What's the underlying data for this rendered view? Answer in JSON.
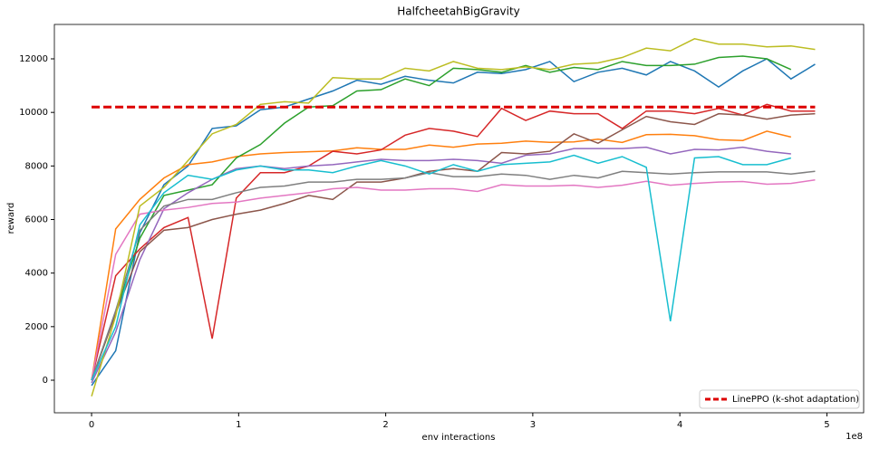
{
  "chart_data": {
    "type": "line",
    "title": "HalfcheetahBigGravity",
    "x_label": "env interactions",
    "y_label": "reward",
    "x_offset_label": "1e8",
    "x": [
      0,
      16400000,
      32800000,
      49200000,
      65600000,
      82000000,
      98400000,
      114800000,
      131200000,
      147600000,
      164000000,
      180400000,
      196800000,
      213200000,
      229600000,
      246000000,
      262400000,
      278800000,
      295200000,
      311600000,
      328000000,
      344400000,
      360800000,
      377200000,
      393600000,
      410000000,
      426400000,
      442800000,
      459200000,
      475600000,
      492000000
    ],
    "series": [
      {
        "color": "#1f77b4",
        "values": [
          -200,
          1100,
          5500,
          7300,
          8000,
          9400,
          9500,
          10100,
          10200,
          10500,
          10800,
          11200,
          11050,
          11350,
          11200,
          11100,
          11500,
          11450,
          11600,
          11900,
          11150,
          11500,
          11650,
          11400,
          11900,
          11550,
          10950,
          11550,
          12000,
          11250,
          11800
        ]
      },
      {
        "color": "#ff7f0e",
        "values": [
          0,
          5650,
          6750,
          7550,
          8050,
          8150,
          8350,
          8450,
          8500,
          8530,
          8560,
          8680,
          8620,
          8620,
          8780,
          8700,
          8820,
          8850,
          8930,
          8880,
          8900,
          9000,
          8880,
          9170,
          9180,
          9130,
          8980,
          8950,
          9300,
          9080,
          null
        ]
      },
      {
        "color": "#2ca02c",
        "values": [
          0,
          2500,
          5300,
          6900,
          7100,
          7300,
          8300,
          8800,
          9600,
          10200,
          10250,
          10800,
          10850,
          11250,
          11000,
          11650,
          11600,
          11500,
          11750,
          11500,
          11680,
          11600,
          11900,
          11750,
          11750,
          11800,
          12050,
          12100,
          12000,
          11600,
          null
        ]
      },
      {
        "color": "#d62728",
        "values": [
          0,
          3900,
          4900,
          5700,
          6075,
          1550,
          6800,
          7750,
          7750,
          8000,
          8550,
          8450,
          8600,
          9150,
          9400,
          9300,
          9100,
          10150,
          9700,
          10050,
          9950,
          9950,
          9400,
          10050,
          10050,
          9950,
          10150,
          9900,
          10300,
          10050,
          10050
        ]
      },
      {
        "color": "#9467bd",
        "values": [
          -100,
          1800,
          4500,
          6400,
          7000,
          7500,
          7900,
          8000,
          7900,
          8000,
          8050,
          8150,
          8250,
          8200,
          8200,
          8250,
          8200,
          8100,
          8400,
          8450,
          8650,
          8650,
          8650,
          8700,
          8450,
          8620,
          8600,
          8700,
          8550,
          8450,
          null
        ]
      },
      {
        "color": "#8c564b",
        "values": [
          0,
          2500,
          4800,
          5600,
          5700,
          6000,
          6200,
          6350,
          6600,
          6900,
          6750,
          7400,
          7400,
          7550,
          7800,
          7900,
          7800,
          8500,
          8450,
          8550,
          9200,
          8850,
          9350,
          9850,
          9650,
          9550,
          9950,
          9900,
          9750,
          9900,
          9950
        ]
      },
      {
        "color": "#e377c2",
        "values": [
          0,
          4700,
          6200,
          6350,
          6450,
          6600,
          6650,
          6800,
          6900,
          7000,
          7150,
          7200,
          7100,
          7100,
          7150,
          7150,
          7050,
          7300,
          7250,
          7250,
          7280,
          7200,
          7280,
          7430,
          7280,
          7350,
          7400,
          7420,
          7320,
          7350,
          7480
        ]
      },
      {
        "color": "#7f7f7f",
        "values": [
          0,
          2600,
          5600,
          6500,
          6750,
          6750,
          7000,
          7200,
          7250,
          7400,
          7400,
          7500,
          7500,
          7550,
          7750,
          7600,
          7600,
          7700,
          7650,
          7500,
          7650,
          7550,
          7800,
          7750,
          7700,
          7750,
          7780,
          7780,
          7780,
          7700,
          7800
        ]
      },
      {
        "color": "#bcbd22",
        "values": [
          -600,
          2400,
          6500,
          7200,
          8200,
          9200,
          9550,
          10300,
          10400,
          10350,
          11300,
          11250,
          11250,
          11650,
          11550,
          11900,
          11650,
          11600,
          11700,
          11600,
          11800,
          11850,
          12050,
          12400,
          12300,
          12750,
          12550,
          12550,
          12450,
          12480,
          12350
        ]
      },
      {
        "color": "#17becf",
        "values": [
          0,
          2000,
          5800,
          7000,
          7650,
          7500,
          7850,
          8000,
          7850,
          7850,
          7750,
          8000,
          8200,
          8000,
          7700,
          8050,
          7800,
          8050,
          8100,
          8150,
          8400,
          8100,
          8350,
          7950,
          2200,
          8300,
          8350,
          8050,
          8050,
          8300,
          null
        ]
      }
    ],
    "reference_line": {
      "name": "LinePPO (k-shot adaptation)",
      "value": 10200,
      "color": "#dd0000"
    },
    "legend": "lower right",
    "xlim": [
      -25300000,
      525000000
    ],
    "xticks": [
      {
        "value": 0,
        "label": "0"
      },
      {
        "value": 100000000,
        "label": "1"
      },
      {
        "value": 200000000,
        "label": "2"
      },
      {
        "value": 300000000,
        "label": "3"
      },
      {
        "value": 400000000,
        "label": "4"
      },
      {
        "value": 500000000,
        "label": "5"
      }
    ],
    "ylim": [
      -1217,
      13285
    ],
    "yticks": [
      0,
      2000,
      4000,
      6000,
      8000,
      10000,
      12000
    ]
  }
}
